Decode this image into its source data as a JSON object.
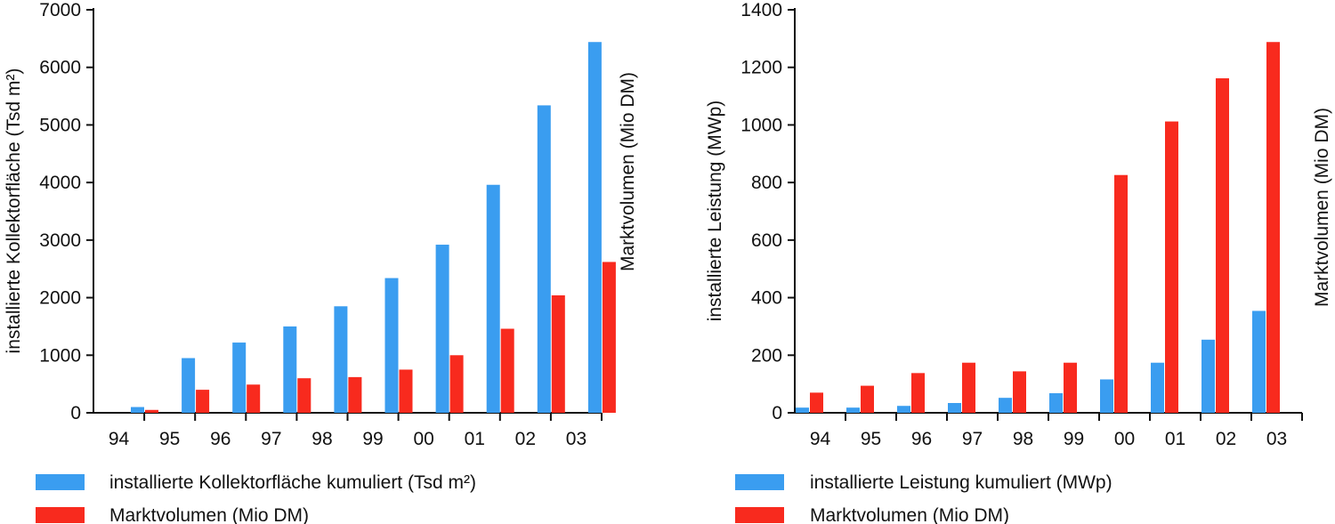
{
  "chart_data": [
    {
      "type": "bar",
      "categories": [
        "94",
        "95",
        "96",
        "97",
        "98",
        "99",
        "00",
        "01",
        "02",
        "03"
      ],
      "ylabel": "installierte Kollektorfläche (Tsd m²)",
      "ylabel_right": "Marktvolumen (Mio DM)",
      "ylim": [
        0,
        7000
      ],
      "yticks": [
        "0",
        "1000",
        "2000",
        "3000",
        "4000",
        "5000",
        "6000",
        "7000"
      ],
      "grid": false,
      "legend_position": "bottom",
      "series": [
        {
          "name": "installierte Kollektorfläche kumuliert (Tsd m²)",
          "color": "#3a9df0",
          "values": [
            100,
            950,
            1220,
            1500,
            1850,
            2340,
            2920,
            3960,
            5340,
            6440
          ]
        },
        {
          "name": "Marktvolumen (Mio DM)",
          "color": "#f82a1e",
          "values": [
            50,
            400,
            490,
            600,
            620,
            750,
            1000,
            1460,
            2040,
            2620
          ]
        }
      ]
    },
    {
      "type": "bar",
      "categories": [
        "94",
        "95",
        "96",
        "97",
        "98",
        "99",
        "00",
        "01",
        "02",
        "03"
      ],
      "ylabel": "installierte Leistung (MWp)",
      "ylabel_right": "Marktvolumen (Mio DM)",
      "ylim": [
        0,
        1400
      ],
      "yticks": [
        "0",
        "200",
        "400",
        "600",
        "800",
        "1000",
        "1200",
        "1400"
      ],
      "grid": false,
      "legend_position": "bottom",
      "series": [
        {
          "name": "installierte Leistung kumuliert (MWp)",
          "color": "#3a9df0",
          "values": [
            18,
            18,
            24,
            34,
            52,
            68,
            116,
            174,
            254,
            354
          ]
        },
        {
          "name": "Marktvolumen (Mio DM)",
          "color": "#f82a1e",
          "values": [
            70,
            94,
            138,
            174,
            144,
            174,
            826,
            1012,
            1162,
            1288
          ]
        }
      ]
    }
  ]
}
